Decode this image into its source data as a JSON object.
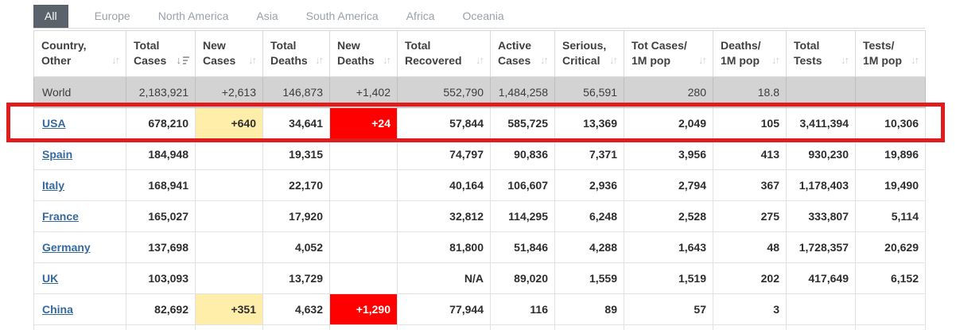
{
  "tabs": [
    {
      "label": "All",
      "active": true
    },
    {
      "label": "Europe",
      "active": false
    },
    {
      "label": "North America",
      "active": false
    },
    {
      "label": "Asia",
      "active": false
    },
    {
      "label": "South America",
      "active": false
    },
    {
      "label": "Africa",
      "active": false
    },
    {
      "label": "Oceania",
      "active": false
    }
  ],
  "table": {
    "columns": [
      {
        "key": "country",
        "lines": [
          "Country,",
          "Other"
        ],
        "sort": "none",
        "align": "left"
      },
      {
        "key": "total_cases",
        "lines": [
          "Total",
          "Cases"
        ],
        "sort": "desc",
        "align": "right"
      },
      {
        "key": "new_cases",
        "lines": [
          "New",
          "Cases"
        ],
        "sort": "none",
        "align": "right"
      },
      {
        "key": "total_deaths",
        "lines": [
          "Total",
          "Deaths"
        ],
        "sort": "none",
        "align": "right"
      },
      {
        "key": "new_deaths",
        "lines": [
          "New",
          "Deaths"
        ],
        "sort": "none",
        "align": "right"
      },
      {
        "key": "total_recovered",
        "lines": [
          "Total",
          "Recovered"
        ],
        "sort": "none",
        "align": "right"
      },
      {
        "key": "active_cases",
        "lines": [
          "Active",
          "Cases"
        ],
        "sort": "none",
        "align": "right"
      },
      {
        "key": "serious_critical",
        "lines": [
          "Serious,",
          "Critical"
        ],
        "sort": "none",
        "align": "right"
      },
      {
        "key": "tot_cases_1m",
        "lines": [
          "Tot Cases/",
          "1M pop"
        ],
        "sort": "none",
        "align": "right"
      },
      {
        "key": "deaths_1m",
        "lines": [
          "Deaths/",
          "1M pop"
        ],
        "sort": "none",
        "align": "right"
      },
      {
        "key": "total_tests",
        "lines": [
          "Total",
          "Tests"
        ],
        "sort": "none",
        "align": "right"
      },
      {
        "key": "tests_1m",
        "lines": [
          "Tests/",
          "1M pop"
        ],
        "sort": "none",
        "align": "right"
      }
    ],
    "world_row": {
      "country": "World",
      "total_cases": "2,183,921",
      "new_cases": "+2,613",
      "total_deaths": "146,873",
      "new_deaths": "+1,402",
      "total_recovered": "552,790",
      "active_cases": "1,484,258",
      "serious_critical": "56,591",
      "tot_cases_1m": "280",
      "deaths_1m": "18.8",
      "total_tests": "",
      "tests_1m": ""
    },
    "rows": [
      {
        "country": "USA",
        "total_cases": "678,210",
        "new_cases": "+640",
        "new_cases_highlight": "yellow",
        "total_deaths": "34,641",
        "new_deaths": "+24",
        "new_deaths_highlight": "red",
        "total_recovered": "57,844",
        "active_cases": "585,725",
        "serious_critical": "13,369",
        "tot_cases_1m": "2,049",
        "deaths_1m": "105",
        "total_tests": "3,411,394",
        "tests_1m": "10,306",
        "annotated": true
      },
      {
        "country": "Spain",
        "total_cases": "184,948",
        "new_cases": "",
        "total_deaths": "19,315",
        "new_deaths": "",
        "total_recovered": "74,797",
        "active_cases": "90,836",
        "serious_critical": "7,371",
        "tot_cases_1m": "3,956",
        "deaths_1m": "413",
        "total_tests": "930,230",
        "tests_1m": "19,896"
      },
      {
        "country": "Italy",
        "total_cases": "168,941",
        "new_cases": "",
        "total_deaths": "22,170",
        "new_deaths": "",
        "total_recovered": "40,164",
        "active_cases": "106,607",
        "serious_critical": "2,936",
        "tot_cases_1m": "2,794",
        "deaths_1m": "367",
        "total_tests": "1,178,403",
        "tests_1m": "19,490"
      },
      {
        "country": "France",
        "total_cases": "165,027",
        "new_cases": "",
        "total_deaths": "17,920",
        "new_deaths": "",
        "total_recovered": "32,812",
        "active_cases": "114,295",
        "serious_critical": "6,248",
        "tot_cases_1m": "2,528",
        "deaths_1m": "275",
        "total_tests": "333,807",
        "tests_1m": "5,114"
      },
      {
        "country": "Germany",
        "total_cases": "137,698",
        "new_cases": "",
        "total_deaths": "4,052",
        "new_deaths": "",
        "total_recovered": "81,800",
        "active_cases": "51,846",
        "serious_critical": "4,288",
        "tot_cases_1m": "1,643",
        "deaths_1m": "48",
        "total_tests": "1,728,357",
        "tests_1m": "20,629"
      },
      {
        "country": "UK",
        "total_cases": "103,093",
        "new_cases": "",
        "total_deaths": "13,729",
        "new_deaths": "",
        "total_recovered": "N/A",
        "active_cases": "89,020",
        "serious_critical": "1,559",
        "tot_cases_1m": "1,519",
        "deaths_1m": "202",
        "total_tests": "417,649",
        "tests_1m": "6,152"
      },
      {
        "country": "China",
        "total_cases": "82,692",
        "new_cases": "+351",
        "new_cases_highlight": "yellow",
        "total_deaths": "4,632",
        "new_deaths": "+1,290",
        "new_deaths_highlight": "red",
        "total_recovered": "77,944",
        "active_cases": "116",
        "serious_critical": "89",
        "tot_cases_1m": "57",
        "deaths_1m": "3",
        "total_tests": "",
        "tests_1m": ""
      }
    ]
  },
  "annotation": {
    "description": "red rectangle highlighting USA row",
    "color": "#e01d1d"
  },
  "colors": {
    "tab_active_bg": "#5a636c",
    "link_blue": "#35699f",
    "highlight_yellow": "#ffeeaa",
    "highlight_red": "#ff0000",
    "world_row_bg": "#d3d3d3"
  }
}
